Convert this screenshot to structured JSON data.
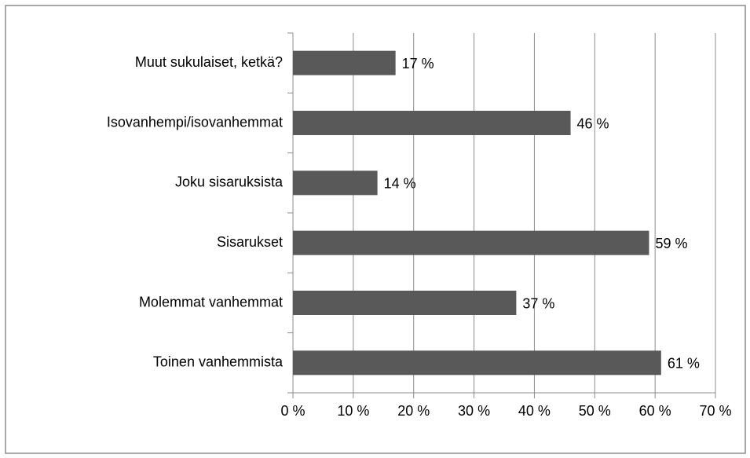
{
  "chart_data": {
    "type": "bar",
    "orientation": "horizontal",
    "categories": [
      "Muut sukulaiset, ketkä?",
      "Isovanhempi/isovanhemmat",
      "Joku sisaruksista",
      "Sisarukset",
      "Molemmat vanhemmat",
      "Toinen vanhemmista"
    ],
    "values": [
      17,
      46,
      14,
      59,
      37,
      61
    ],
    "value_labels": [
      "17 %",
      "46 %",
      "14 %",
      "59 %",
      "37 %",
      "61 %"
    ],
    "color": "#595959",
    "xlim": [
      0,
      70
    ],
    "xticks": [
      {
        "value": 0,
        "label": "0 %"
      },
      {
        "value": 10,
        "label": "10 %"
      },
      {
        "value": 20,
        "label": "20 %"
      },
      {
        "value": 30,
        "label": "30 %"
      },
      {
        "value": 40,
        "label": "40 %"
      },
      {
        "value": 50,
        "label": "50 %"
      },
      {
        "value": 60,
        "label": "60 %"
      },
      {
        "value": 70,
        "label": "70 %"
      }
    ],
    "grid": true
  }
}
